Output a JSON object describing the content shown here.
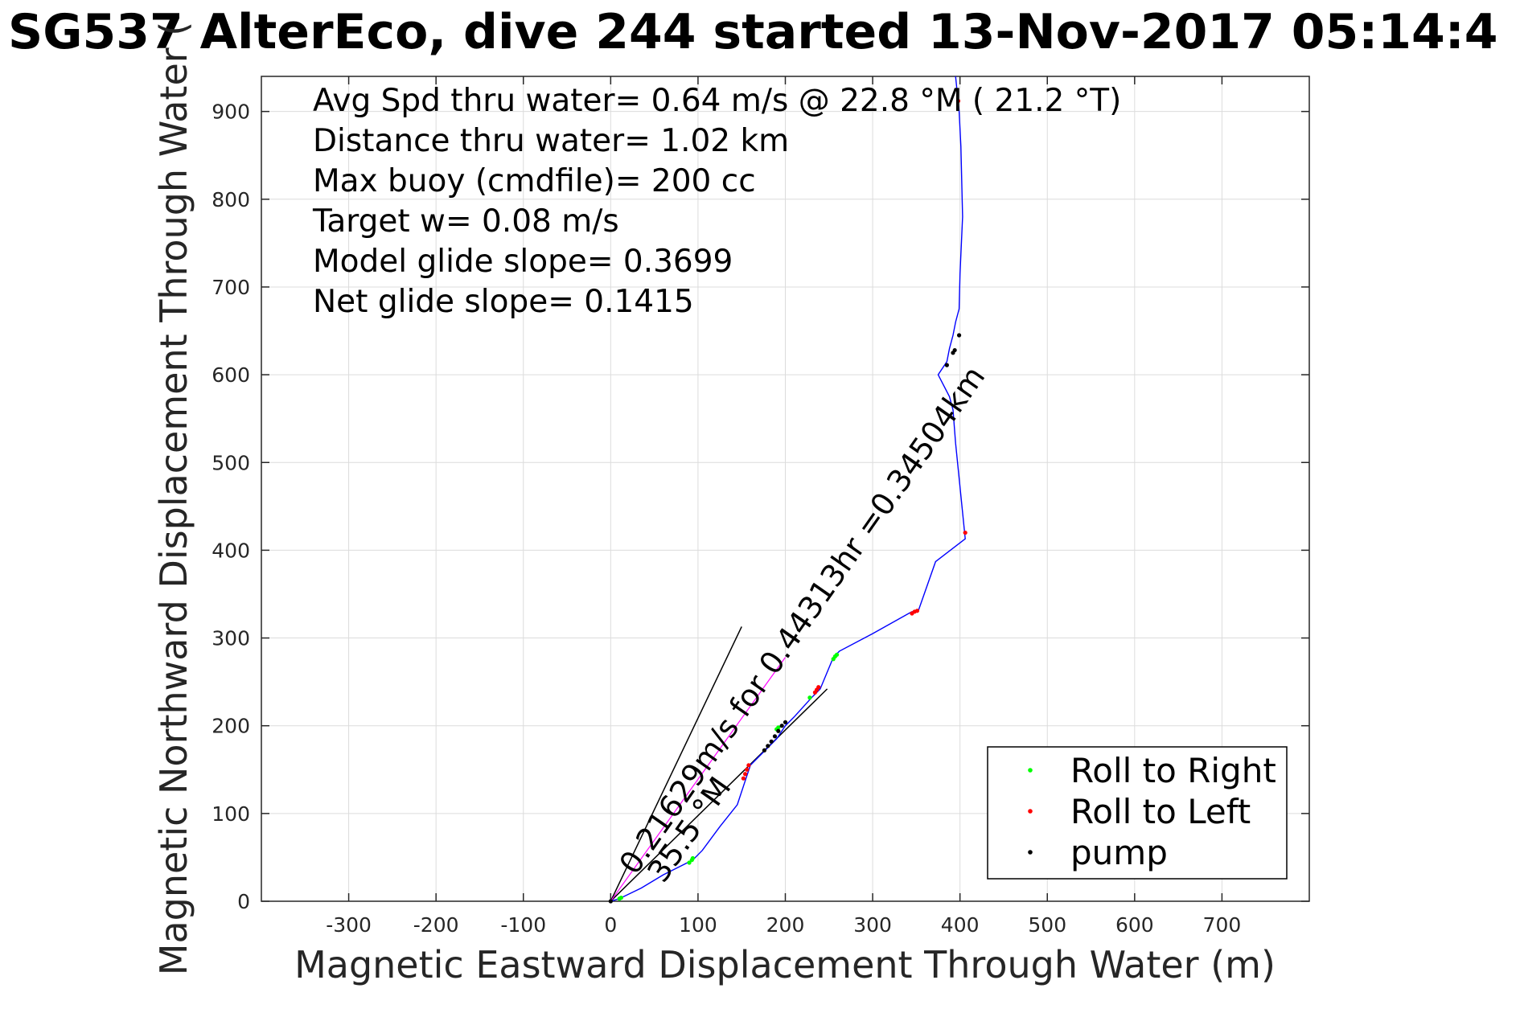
{
  "title": "SG537 AlterEco, dive 244 started 13-Nov-2017 05:14:4",
  "chart_data": {
    "type": "line",
    "xlabel": "Magnetic Eastward Displacement Through Water (m)",
    "ylabel": "Magnetic Northward Displacement Through Water (",
    "xlim": [
      -400,
      800
    ],
    "ylim": [
      0,
      940
    ],
    "x_ticks": [
      "-300",
      "-200",
      "-100",
      "0",
      "100",
      "200",
      "300",
      "400",
      "500",
      "600",
      "700"
    ],
    "x_tick_values": [
      -300,
      -200,
      -100,
      0,
      100,
      200,
      300,
      400,
      500,
      600,
      700
    ],
    "y_ticks": [
      "0",
      "100",
      "200",
      "300",
      "400",
      "500",
      "600",
      "700",
      "800",
      "900"
    ],
    "y_tick_values": [
      0,
      100,
      200,
      300,
      400,
      500,
      600,
      700,
      800,
      900
    ],
    "grid": true,
    "legend_position": "bottom-right",
    "annotations": [
      "Avg Spd thru water=  0.64 m/s @  22.8 °M ( 21.2 °T)",
      "Distance thru water=  1.02 km",
      "Max buoy (cmdfile)= 200 cc",
      "Target w= 0.08 m/s",
      "Model glide slope= 0.3699",
      "Net glide slope= 0.1415"
    ],
    "rotated_labels": [
      {
        "text": "0.21629m/s for 0.44313hr =0.34504km",
        "angle_deg": 55
      },
      {
        "text": "35.5 °M",
        "angle_deg": 55
      }
    ],
    "track": {
      "name": "",
      "color": "#0000ff",
      "x": [
        0,
        10,
        35,
        60,
        90,
        95,
        105,
        125,
        145,
        155,
        160,
        175,
        190,
        200,
        210,
        230,
        240,
        255,
        262,
        300,
        345,
        352,
        372,
        406,
        395,
        392,
        388,
        375,
        385,
        388,
        392,
        395,
        399,
        400,
        403,
        401,
        399,
        396,
        395
      ],
      "y": [
        0,
        3,
        15,
        30,
        45,
        48,
        58,
        85,
        110,
        140,
        155,
        170,
        185,
        200,
        210,
        232,
        242,
        278,
        285,
        305,
        330,
        330,
        387,
        413,
        522,
        560,
        575,
        600,
        615,
        630,
        645,
        660,
        675,
        715,
        780,
        860,
        900,
        930,
        940
      ]
    },
    "reference_lines": [
      {
        "name": "",
        "color": "#000000",
        "x": [
          0,
          150
        ],
        "y": [
          0,
          313
        ]
      },
      {
        "name": "",
        "color": "#000000",
        "x": [
          0,
          248
        ],
        "y": [
          0,
          242
        ]
      }
    ],
    "magenta_line": {
      "color": "#ff00ff",
      "x": [
        0,
        200
      ],
      "y": [
        0,
        278
      ]
    },
    "series": [
      {
        "name": "Roll to Right",
        "color": "#00ff00",
        "x": [
          10,
          12,
          90,
          93,
          94,
          190,
          192,
          228,
          255,
          257,
          259
        ],
        "y": [
          3,
          4,
          44,
          47,
          49,
          196,
          198,
          232,
          276,
          279,
          281
        ]
      },
      {
        "name": "Roll to Left",
        "color": "#ff0000",
        "x": [
          152,
          154,
          156,
          158,
          234,
          236,
          238,
          345,
          348,
          351,
          406,
          398
        ],
        "y": [
          140,
          145,
          150,
          155,
          238,
          241,
          244,
          328,
          330,
          331,
          420,
          912
        ]
      },
      {
        "name": "pump",
        "color": "#000000",
        "x": [
          0,
          176,
          180,
          184,
          188,
          192,
          196,
          200,
          385,
          392,
          394,
          399
        ],
        "y": [
          0,
          172,
          177,
          182,
          188,
          194,
          200,
          204,
          611,
          625,
          628,
          645
        ]
      }
    ]
  }
}
